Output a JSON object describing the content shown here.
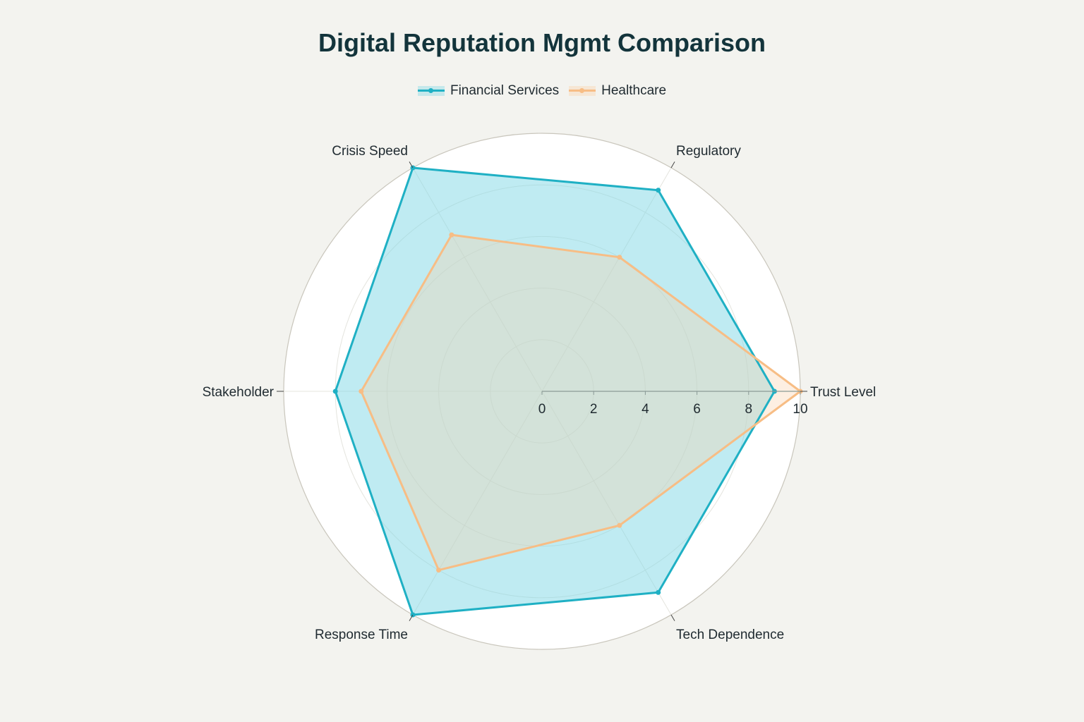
{
  "chart_data": {
    "type": "radar",
    "title": "Digital Reputation Mgmt Comparison",
    "categories": [
      "Trust Level",
      "Regulatory",
      "Crisis Speed",
      "Stakeholder",
      "Response Time",
      "Tech Dependence"
    ],
    "series": [
      {
        "name": "Financial Services",
        "values": [
          9,
          9,
          10,
          8,
          10,
          9
        ],
        "color": "#1fb0c4",
        "fill": "#7fd7e6"
      },
      {
        "name": "Healthcare",
        "values": [
          10,
          6,
          7,
          7,
          8,
          6
        ],
        "color": "#f7bd85",
        "fill": "#f9d2ad"
      }
    ],
    "radial_range": [
      0,
      10
    ],
    "radial_ticks": [
      "0",
      "2",
      "4",
      "6",
      "8",
      "10"
    ],
    "grid": true,
    "legend_position": "top-center"
  }
}
